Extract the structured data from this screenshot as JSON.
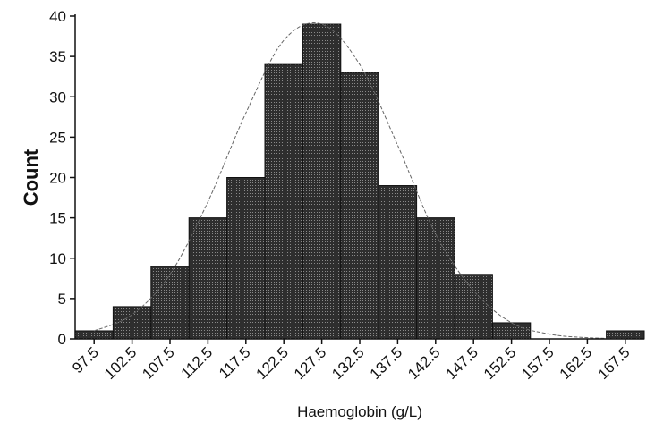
{
  "chart_data": {
    "type": "bar",
    "xlabel": "Haemoglobin (g/L)",
    "ylabel": "Count",
    "categories": [
      "97.5",
      "102.5",
      "107.5",
      "112.5",
      "117.5",
      "122.5",
      "127.5",
      "132.5",
      "137.5",
      "142.5",
      "147.5",
      "152.5",
      "157.5",
      "162.5",
      "167.5"
    ],
    "values": [
      1,
      4,
      9,
      15,
      20,
      34,
      39,
      33,
      19,
      15,
      8,
      2,
      0,
      0,
      1
    ],
    "ylim": [
      0,
      40
    ],
    "yticks": [
      0,
      5,
      10,
      15,
      20,
      25,
      30,
      35,
      40
    ],
    "bar_color": "#3a3a3a",
    "fit_curve": {
      "type": "normal",
      "x": [
        97.5,
        102.5,
        107.5,
        112.5,
        117.5,
        122.5,
        127.5,
        132.5,
        137.5,
        142.5,
        147.5,
        152.5,
        157.5,
        162.5,
        167.5
      ],
      "y": [
        1,
        3,
        8,
        17,
        28,
        37,
        39,
        34,
        24,
        13,
        6,
        2,
        0.6,
        0.15,
        0.03
      ]
    },
    "grid": false,
    "legend": "none"
  }
}
